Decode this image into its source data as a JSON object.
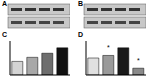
{
  "blots": [
    {
      "label": "A"
    },
    {
      "label": "B"
    }
  ],
  "chart_data": [
    {
      "type": "bar",
      "title": "C",
      "categories": [
        null,
        null,
        null,
        null
      ],
      "values": [
        1.0,
        1.3,
        1.6,
        2.0
      ],
      "colors": [
        "#d4d4d4",
        "#a8a8a8",
        "#6e6e6e",
        "#111111"
      ],
      "ylim": [
        0,
        2.5
      ],
      "tick_labels": false
    },
    {
      "type": "bar",
      "title": "D",
      "categories": [
        null,
        null,
        null,
        null
      ],
      "values": [
        1.0,
        1.15,
        1.6,
        0.4
      ],
      "colors": [
        "#e0e0e0",
        "#9a9a9a",
        "#1a1a1a",
        "#8a8a8a"
      ],
      "ylim": [
        0,
        2.0
      ],
      "tick_labels": false,
      "annotations": [
        null,
        "*",
        null,
        "*"
      ]
    }
  ]
}
